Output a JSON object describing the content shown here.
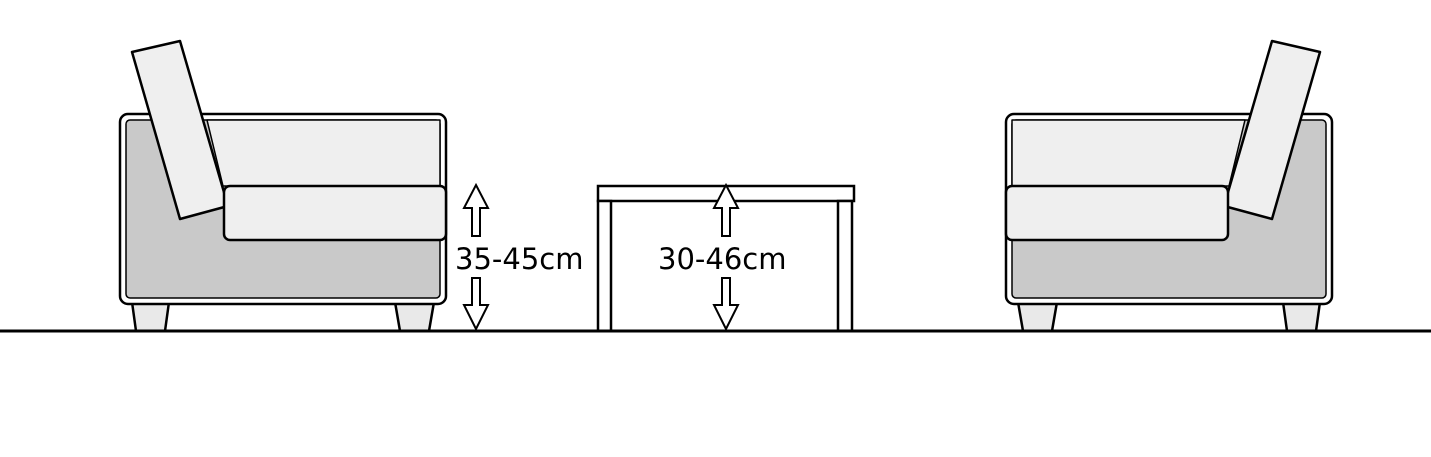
{
  "dimensions": {
    "seat_height": "35-45cm",
    "table_height": "30-46cm"
  },
  "colors": {
    "outline": "#000000",
    "cushion_fill": "#efefef",
    "body_fill": "#c9c9c9",
    "leg_fill": "#e9e9e9",
    "background": "#ffffff"
  }
}
